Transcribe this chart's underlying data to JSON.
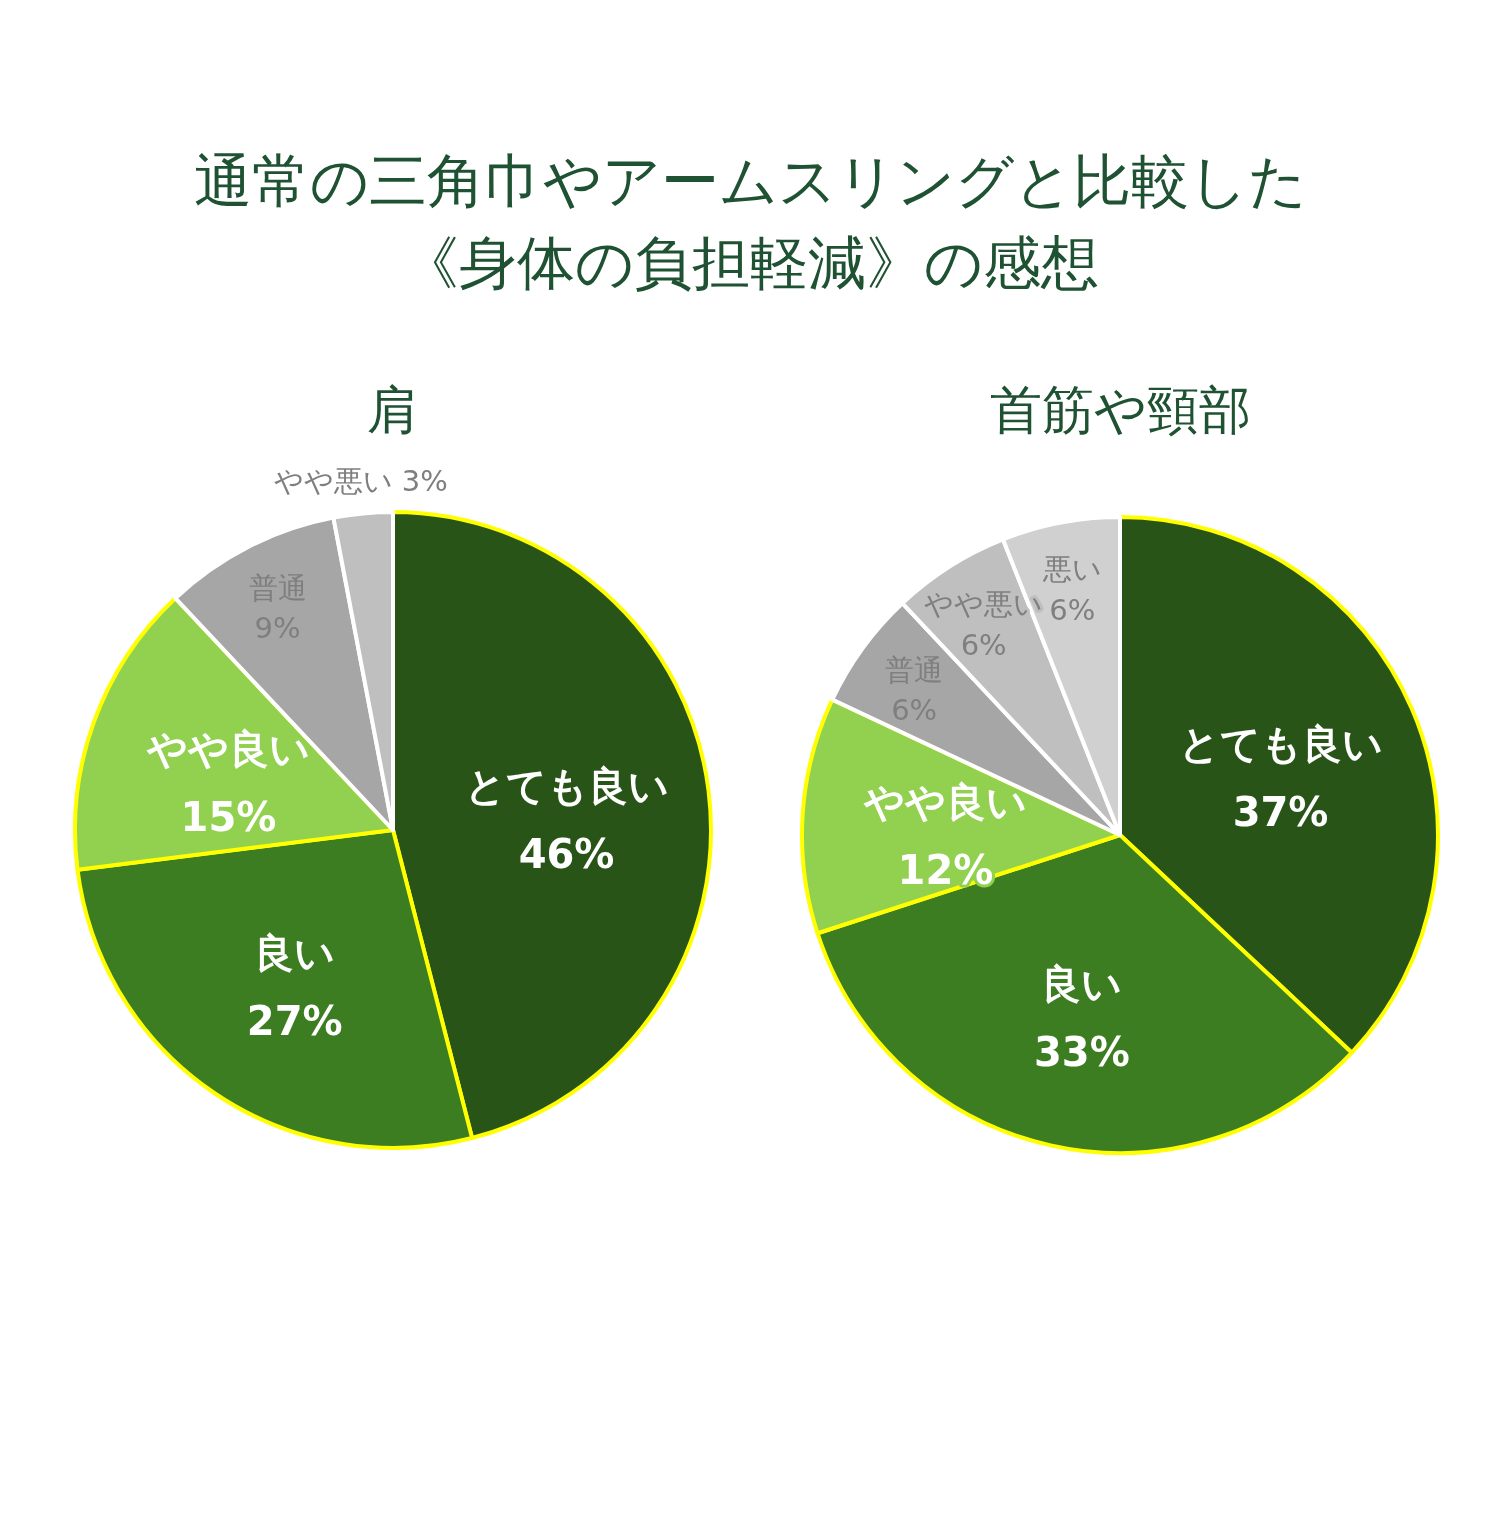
{
  "chart_data": [
    {
      "type": "pie",
      "title": "通常の三角巾やアームスリングと比較した《身体の負担軽減》の感想",
      "subtitle": "肩",
      "categories": [
        "とても良い",
        "良い",
        "やや良い",
        "普通",
        "やや悪い"
      ],
      "values": [
        46,
        27,
        15,
        9,
        3
      ],
      "value_labels": [
        "46%",
        "27%",
        "15%",
        "9%",
        "3%"
      ],
      "colors": [
        "#285418",
        "#3c7d22",
        "#92d050",
        "#a6a6a6",
        "#bfbfbf"
      ]
    },
    {
      "type": "pie",
      "subtitle": "首筋や頸部",
      "categories": [
        "とても良い",
        "良い",
        "やや良い",
        "普通",
        "やや悪い",
        "悪い"
      ],
      "values": [
        37,
        33,
        12,
        6,
        6,
        6
      ],
      "value_labels": [
        "37%",
        "33%",
        "12%",
        "6%",
        "6%",
        "6%"
      ],
      "colors": [
        "#285418",
        "#3c7d22",
        "#92d050",
        "#a6a6a6",
        "#bfbfbf",
        "#d0d0d0"
      ]
    }
  ]
}
